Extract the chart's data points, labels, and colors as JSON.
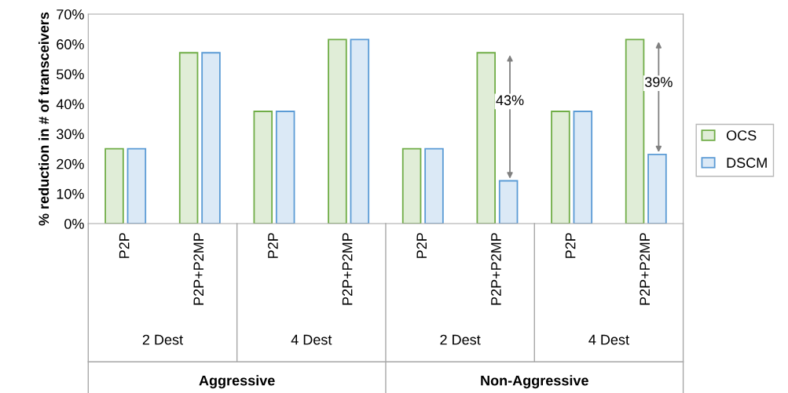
{
  "chart_data": {
    "type": "bar",
    "ylabel": "% reduction in # of transceivers",
    "categories": [
      "P2P",
      "P2P+P2MP",
      "P2P",
      "P2P+P2MP",
      "P2P",
      "P2P+P2MP",
      "P2P",
      "P2P+P2MP"
    ],
    "series": [
      {
        "name": "OCS",
        "color": "#70ad47",
        "values": [
          25,
          57.1,
          37.5,
          61.5,
          25,
          57.1,
          37.5,
          61.5
        ]
      },
      {
        "name": "DSCM",
        "color": "#5b9bd5",
        "values": [
          25,
          57.1,
          37.5,
          61.5,
          25,
          14.3,
          37.5,
          23.1
        ]
      }
    ],
    "ylim": [
      0,
      70
    ],
    "yticks": [
      {
        "value": 0,
        "label": "0%"
      },
      {
        "value": 10,
        "label": "10%"
      },
      {
        "value": 20,
        "label": "20%"
      },
      {
        "value": 30,
        "label": "30%"
      },
      {
        "value": 40,
        "label": "40%"
      },
      {
        "value": 50,
        "label": "50%"
      },
      {
        "value": 60,
        "label": "60%"
      },
      {
        "value": 70,
        "label": "70%"
      }
    ],
    "annotations": [
      "43%",
      "39%",
      "2 Dest",
      "4 Dest",
      "2 Dest",
      "4 Dest",
      "Aggressive",
      "Non-Aggressive"
    ],
    "legend": "right",
    "grid": false
  }
}
